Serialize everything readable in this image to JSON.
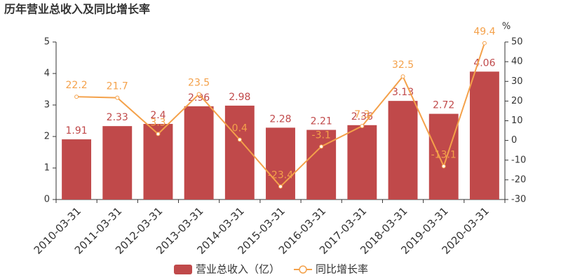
{
  "chart_data": {
    "type": "bar",
    "title": "历年营业总收入及同比增长率",
    "y2_label": "%",
    "categories": [
      "2010-03-31",
      "2011-03-31",
      "2012-03-31",
      "2013-03-31",
      "2014-03-31",
      "2015-03-31",
      "2016-03-31",
      "2017-03-31",
      "2018-03-31",
      "2019-03-31",
      "2020-03-31"
    ],
    "series": [
      {
        "name": "营业总收入（亿）",
        "color": "#c0494a",
        "values": [
          1.91,
          2.33,
          2.4,
          2.96,
          2.98,
          2.28,
          2.21,
          2.36,
          3.13,
          2.72,
          4.06
        ]
      },
      {
        "name": "同比增长率",
        "color": "#f4a14a",
        "type": "line",
        "axis": "y2",
        "values": [
          22.2,
          21.7,
          3.3,
          23.5,
          0.4,
          -23.4,
          -3.1,
          7.3,
          32.5,
          -13.1,
          49.4
        ]
      }
    ],
    "ylim": [
      0,
      5
    ],
    "yticks": [
      0,
      1,
      2,
      3,
      4,
      5
    ],
    "y2lim": [
      -30,
      50
    ],
    "y2ticks": [
      -30,
      -20,
      -10,
      0,
      10,
      20,
      30,
      40,
      50
    ],
    "grid": false,
    "legend": "bottom"
  }
}
